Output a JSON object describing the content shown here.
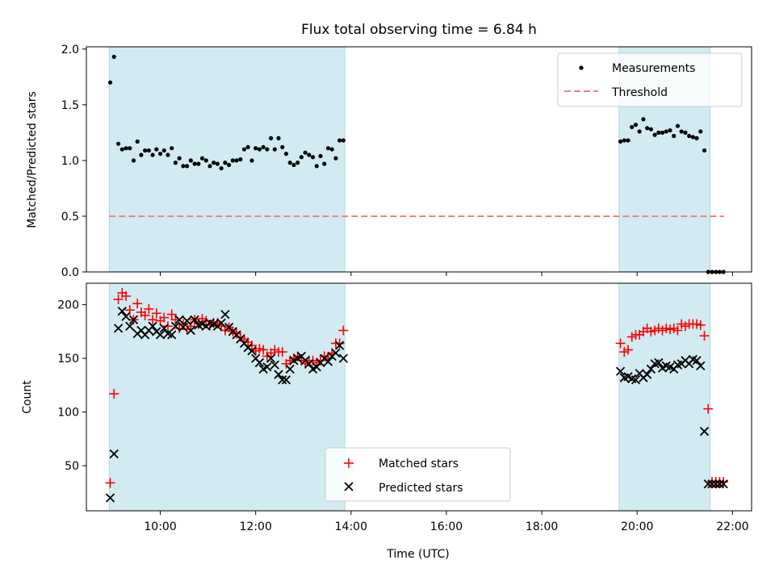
{
  "chart_data": [
    {
      "type": "scatter",
      "title": "Flux total observing time = 6.84 h",
      "ylabel": "Matched/Predicted stars",
      "xlabel": "",
      "xlim": [
        8.45,
        22.4
      ],
      "ylim": [
        0,
        2.02
      ],
      "y_ticks": [
        0.0,
        0.5,
        1.0,
        1.5,
        2.0
      ],
      "y_tick_labels": [
        "0.0",
        "0.5",
        "1.0",
        "1.5",
        "2.0"
      ],
      "grid": false,
      "legend": "top-right",
      "shaded_regions": [
        [
          8.93,
          13.87
        ],
        [
          19.62,
          21.53
        ]
      ],
      "colors": {
        "measurements": "#000000",
        "threshold": "#f08080",
        "shade": "#add8e6"
      },
      "threshold": {
        "name": "Threshold",
        "y": 0.5,
        "x": [
          8.93,
          21.82
        ]
      },
      "series": [
        {
          "name": "Measurements",
          "x": [
            8.95,
            9.03,
            9.12,
            9.2,
            9.28,
            9.36,
            9.44,
            9.52,
            9.6,
            9.68,
            9.76,
            9.84,
            9.92,
            10.0,
            10.08,
            10.16,
            10.24,
            10.32,
            10.4,
            10.48,
            10.56,
            10.64,
            10.72,
            10.8,
            10.88,
            10.96,
            11.04,
            11.12,
            11.2,
            11.28,
            11.36,
            11.44,
            11.52,
            11.6,
            11.68,
            11.76,
            11.84,
            11.92,
            12.0,
            12.08,
            12.16,
            12.24,
            12.32,
            12.4,
            12.48,
            12.56,
            12.64,
            12.72,
            12.8,
            12.88,
            12.96,
            13.04,
            13.12,
            13.2,
            13.28,
            13.36,
            13.44,
            13.52,
            13.6,
            13.68,
            13.76,
            13.84,
            19.65,
            19.73,
            19.81,
            19.89,
            19.97,
            20.05,
            20.13,
            20.21,
            20.29,
            20.37,
            20.45,
            20.53,
            20.61,
            20.69,
            20.77,
            20.85,
            20.93,
            21.01,
            21.09,
            21.17,
            21.25,
            21.33,
            21.41,
            21.49,
            21.57,
            21.65,
            21.73,
            21.81
          ],
          "y": [
            1.7,
            1.93,
            1.15,
            1.1,
            1.11,
            1.11,
            1.0,
            1.17,
            1.05,
            1.09,
            1.09,
            1.05,
            1.1,
            1.06,
            1.09,
            1.05,
            1.11,
            0.98,
            1.02,
            0.95,
            0.95,
            1.0,
            0.97,
            0.97,
            1.02,
            1.0,
            0.95,
            0.98,
            0.97,
            0.93,
            0.98,
            0.96,
            1.0,
            1.0,
            1.01,
            1.1,
            1.12,
            1.0,
            1.11,
            1.1,
            1.12,
            1.1,
            1.2,
            1.1,
            1.2,
            1.12,
            1.06,
            0.98,
            0.96,
            0.98,
            1.03,
            1.07,
            1.05,
            1.03,
            0.95,
            1.04,
            0.97,
            1.11,
            1.1,
            1.02,
            1.18,
            1.18,
            1.17,
            1.18,
            1.18,
            1.3,
            1.32,
            1.26,
            1.37,
            1.29,
            1.28,
            1.23,
            1.25,
            1.25,
            1.26,
            1.27,
            1.22,
            1.31,
            1.26,
            1.25,
            1.22,
            1.21,
            1.2,
            1.26,
            1.09,
            0.0,
            0.0,
            0.0,
            0.0,
            0.0
          ]
        }
      ]
    },
    {
      "type": "scatter",
      "xlabel": "Time (UTC)",
      "ylabel": "Count",
      "xlim": [
        8.45,
        22.4
      ],
      "ylim": [
        8,
        220
      ],
      "x_ticks": [
        10,
        12,
        14,
        16,
        18,
        20,
        22
      ],
      "x_tick_labels": [
        "10:00",
        "12:00",
        "14:00",
        "16:00",
        "18:00",
        "20:00",
        "22:00"
      ],
      "y_ticks": [
        50,
        100,
        150,
        200
      ],
      "y_tick_labels": [
        "50",
        "100",
        "150",
        "200"
      ],
      "grid": false,
      "legend": "bottom-center",
      "shaded_regions": [
        [
          8.93,
          13.87
        ],
        [
          19.62,
          21.53
        ]
      ],
      "colors": {
        "matched": "#ff0000",
        "predicted": "#000000",
        "shade": "#add8e6"
      },
      "series": [
        {
          "name": "Matched stars",
          "x": [
            8.95,
            9.03,
            9.12,
            9.2,
            9.28,
            9.36,
            9.44,
            9.52,
            9.6,
            9.68,
            9.76,
            9.84,
            9.92,
            10.0,
            10.08,
            10.16,
            10.24,
            10.32,
            10.4,
            10.48,
            10.56,
            10.64,
            10.72,
            10.8,
            10.88,
            10.96,
            11.04,
            11.12,
            11.2,
            11.28,
            11.36,
            11.44,
            11.52,
            11.6,
            11.68,
            11.76,
            11.84,
            11.92,
            12.0,
            12.08,
            12.16,
            12.24,
            12.32,
            12.4,
            12.48,
            12.56,
            12.64,
            12.72,
            12.8,
            12.88,
            12.96,
            13.04,
            13.12,
            13.2,
            13.28,
            13.36,
            13.44,
            13.52,
            13.6,
            13.68,
            13.76,
            13.84,
            19.65,
            19.73,
            19.81,
            19.89,
            19.97,
            20.05,
            20.13,
            20.21,
            20.29,
            20.37,
            20.45,
            20.53,
            20.61,
            20.69,
            20.77,
            20.85,
            20.93,
            21.01,
            21.09,
            21.17,
            21.25,
            21.33,
            21.41,
            21.49,
            21.57,
            21.65,
            21.73,
            21.81
          ],
          "y": [
            34,
            117,
            205,
            211,
            208,
            195,
            186,
            201,
            193,
            190,
            196,
            186,
            192,
            185,
            188,
            180,
            191,
            186,
            178,
            182,
            177,
            180,
            186,
            182,
            187,
            185,
            181,
            183,
            183,
            180,
            176,
            179,
            175,
            173,
            170,
            168,
            165,
            162,
            157,
            159,
            158,
            152,
            155,
            158,
            156,
            156,
            145,
            148,
            150,
            152,
            148,
            145,
            148,
            148,
            146,
            148,
            152,
            150,
            155,
            164,
            164,
            176,
            164,
            156,
            158,
            170,
            172,
            172,
            175,
            178,
            175,
            176,
            178,
            176,
            178,
            177,
            178,
            176,
            182,
            180,
            182,
            182,
            182,
            181,
            171,
            103,
            35,
            35,
            35,
            35
          ]
        },
        {
          "name": "Predicted stars",
          "x": [
            8.95,
            9.03,
            9.12,
            9.2,
            9.28,
            9.36,
            9.44,
            9.52,
            9.6,
            9.68,
            9.76,
            9.84,
            9.92,
            10.0,
            10.08,
            10.16,
            10.24,
            10.32,
            10.4,
            10.48,
            10.56,
            10.64,
            10.72,
            10.8,
            10.88,
            10.96,
            11.04,
            11.12,
            11.2,
            11.28,
            11.36,
            11.44,
            11.52,
            11.6,
            11.68,
            11.76,
            11.84,
            11.92,
            12.0,
            12.08,
            12.16,
            12.24,
            12.32,
            12.4,
            12.48,
            12.56,
            12.64,
            12.72,
            12.8,
            12.88,
            12.96,
            13.04,
            13.12,
            13.2,
            13.28,
            13.36,
            13.44,
            13.52,
            13.6,
            13.68,
            13.76,
            13.84,
            19.65,
            19.73,
            19.81,
            19.89,
            19.97,
            20.05,
            20.13,
            20.21,
            20.29,
            20.37,
            20.45,
            20.53,
            20.61,
            20.69,
            20.77,
            20.85,
            20.93,
            21.01,
            21.09,
            21.17,
            21.25,
            21.33,
            21.41,
            21.49,
            21.57,
            21.65,
            21.73,
            21.81
          ],
          "y": [
            20,
            61,
            178,
            194,
            189,
            180,
            186,
            173,
            176,
            172,
            176,
            180,
            175,
            172,
            178,
            173,
            172,
            180,
            186,
            179,
            185,
            176,
            186,
            181,
            182,
            180,
            183,
            182,
            180,
            183,
            191,
            179,
            175,
            172,
            168,
            164,
            160,
            157,
            150,
            146,
            140,
            142,
            150,
            144,
            135,
            130,
            130,
            140,
            148,
            150,
            152,
            148,
            145,
            140,
            142,
            146,
            150,
            147,
            152,
            155,
            162,
            150,
            138,
            132,
            133,
            131,
            130,
            136,
            132,
            135,
            140,
            145,
            146,
            141,
            143,
            142,
            140,
            144,
            145,
            148,
            145,
            149,
            148,
            143,
            82,
            33,
            33,
            33,
            33,
            33
          ]
        }
      ]
    }
  ]
}
